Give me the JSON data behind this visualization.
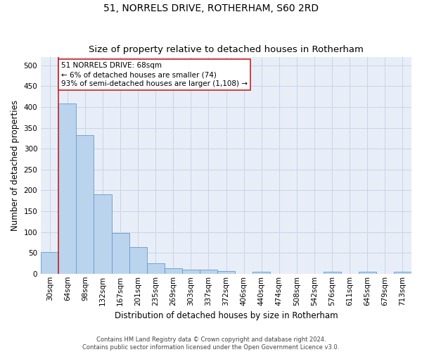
{
  "title": "51, NORRELS DRIVE, ROTHERHAM, S60 2RD",
  "subtitle": "Size of property relative to detached houses in Rotherham",
  "xlabel": "Distribution of detached houses by size in Rotherham",
  "ylabel": "Number of detached properties",
  "categories": [
    "30sqm",
    "64sqm",
    "98sqm",
    "132sqm",
    "167sqm",
    "201sqm",
    "235sqm",
    "269sqm",
    "303sqm",
    "337sqm",
    "372sqm",
    "406sqm",
    "440sqm",
    "474sqm",
    "508sqm",
    "542sqm",
    "576sqm",
    "611sqm",
    "645sqm",
    "679sqm",
    "713sqm"
  ],
  "values": [
    52,
    408,
    332,
    191,
    98,
    63,
    25,
    13,
    10,
    10,
    6,
    0,
    5,
    0,
    0,
    0,
    5,
    0,
    5,
    0,
    5
  ],
  "bar_color": "#bad4ed",
  "bar_edge_color": "#6699cc",
  "property_line_color": "#cc2222",
  "property_line_bin": 1,
  "annotation_line1": "51 NORRELS DRIVE: 68sqm",
  "annotation_line2": "← 6% of detached houses are smaller (74)",
  "annotation_line3": "93% of semi-detached houses are larger (1,108) →",
  "annotation_box_edge_color": "#cc2222",
  "annotation_box_fill": "#ffffff",
  "ylim": [
    0,
    520
  ],
  "yticks": [
    0,
    50,
    100,
    150,
    200,
    250,
    300,
    350,
    400,
    450,
    500
  ],
  "footer_line1": "Contains HM Land Registry data © Crown copyright and database right 2024.",
  "footer_line2": "Contains public sector information licensed under the Open Government Licence v3.0.",
  "bg_color": "#ffffff",
  "plot_bg_color": "#e8eef8",
  "grid_color": "#c8d4e8",
  "title_fontsize": 10,
  "subtitle_fontsize": 9.5,
  "xlabel_fontsize": 8.5,
  "ylabel_fontsize": 8.5,
  "tick_fontsize": 7.5,
  "annotation_fontsize": 7.5,
  "footer_fontsize": 6
}
